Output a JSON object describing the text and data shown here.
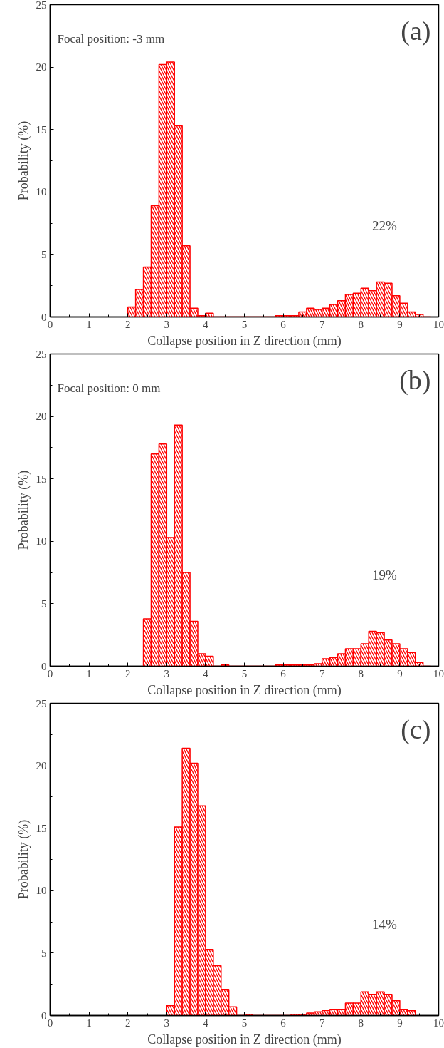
{
  "chart_data": [
    {
      "type": "histogram",
      "title": "(a)",
      "subtitle": "Focal position: -3 mm",
      "xlabel": "Collapse position in Z direction (mm)",
      "ylabel": "Probability (%)",
      "color": "#ff0000",
      "bins": [
        2.0,
        2.2,
        2.4,
        2.6,
        2.8,
        3.0,
        3.2,
        3.4,
        3.6,
        3.8,
        4.0,
        4.2,
        4.4,
        4.6,
        4.8,
        5.0,
        5.2,
        5.4,
        5.6,
        5.8,
        6.0,
        6.2,
        6.4,
        6.6,
        6.8,
        7.0,
        7.2,
        7.4,
        7.6,
        7.8,
        8.0,
        8.2,
        8.4,
        8.6,
        8.8,
        9.0,
        9.2,
        9.4,
        9.6,
        9.8
      ],
      "values": [
        0.8,
        2.2,
        4.0,
        8.9,
        20.2,
        20.4,
        15.3,
        5.7,
        0.7,
        0.1,
        0.3,
        0,
        0,
        0,
        0,
        0,
        0,
        0,
        0,
        0.1,
        0.1,
        0.1,
        0.4,
        0.7,
        0.6,
        0.7,
        1.0,
        1.3,
        1.8,
        1.9,
        2.3,
        2.1,
        2.8,
        2.7,
        1.7,
        1.1,
        0.4,
        0.2,
        0
      ],
      "annotations": [
        "22%"
      ],
      "xlim": [
        0,
        10
      ],
      "ylim": [
        0,
        25
      ],
      "xticks": [
        0,
        1,
        2,
        3,
        4,
        5,
        6,
        7,
        8,
        9,
        10
      ],
      "yticks": [
        0,
        5,
        10,
        15,
        20,
        25
      ]
    },
    {
      "type": "histogram",
      "title": "(b)",
      "subtitle": "Focal position: 0 mm",
      "xlabel": "Collapse position in Z direction (mm)",
      "ylabel": "Probability (%)",
      "color": "#ff0000",
      "bins": [
        2.4,
        2.6,
        2.8,
        3.0,
        3.2,
        3.4,
        3.6,
        3.8,
        4.0,
        4.2,
        4.4,
        4.6,
        4.8,
        5.0,
        5.2,
        5.4,
        5.6,
        5.8,
        6.0,
        6.2,
        6.4,
        6.6,
        6.8,
        7.0,
        7.2,
        7.4,
        7.6,
        7.8,
        8.0,
        8.2,
        8.4,
        8.6,
        8.8,
        9.0,
        9.2,
        9.4,
        9.6,
        9.8
      ],
      "values": [
        3.8,
        17.0,
        17.8,
        10.3,
        19.3,
        7.5,
        3.6,
        1.0,
        0.8,
        0,
        0.1,
        0,
        0,
        0,
        0,
        0,
        0,
        0.1,
        0.1,
        0.1,
        0.1,
        0.1,
        0.2,
        0.6,
        0.7,
        1.0,
        1.4,
        1.4,
        1.8,
        2.8,
        2.7,
        2.1,
        1.8,
        1.4,
        1.1,
        0.3,
        0
      ],
      "annotations": [
        "19%"
      ],
      "xlim": [
        0,
        10
      ],
      "ylim": [
        0,
        25
      ],
      "xticks": [
        0,
        1,
        2,
        3,
        4,
        5,
        6,
        7,
        8,
        9,
        10
      ],
      "yticks": [
        0,
        5,
        10,
        15,
        20,
        25
      ]
    },
    {
      "type": "histogram",
      "title": "(c)",
      "xlabel": "Collapse position in Z direction (mm)",
      "ylabel": "Probability (%)",
      "color": "#ff0000",
      "bins": [
        3.0,
        3.2,
        3.4,
        3.6,
        3.8,
        4.0,
        4.2,
        4.4,
        4.6,
        4.8,
        5.0,
        5.2,
        5.4,
        5.6,
        5.8,
        6.0,
        6.2,
        6.4,
        6.6,
        6.8,
        7.0,
        7.2,
        7.4,
        7.6,
        7.8,
        8.0,
        8.2,
        8.4,
        8.6,
        8.8,
        9.0,
        9.2,
        9.4
      ],
      "values": [
        0.8,
        15.1,
        21.4,
        20.2,
        16.8,
        5.3,
        4.0,
        2.1,
        0.7,
        0,
        0.1,
        0,
        0,
        0,
        0,
        0,
        0.1,
        0.1,
        0.2,
        0.3,
        0.4,
        0.5,
        0.5,
        1.0,
        1.0,
        1.9,
        1.7,
        1.9,
        1.7,
        1.2,
        0.5,
        0.4
      ],
      "annotations": [
        "14%"
      ],
      "xlim": [
        0,
        10
      ],
      "ylim": [
        0,
        25
      ],
      "xticks": [
        0,
        1,
        2,
        3,
        4,
        5,
        6,
        7,
        8,
        9,
        10
      ],
      "yticks": [
        0,
        5,
        10,
        15,
        20,
        25
      ]
    }
  ]
}
